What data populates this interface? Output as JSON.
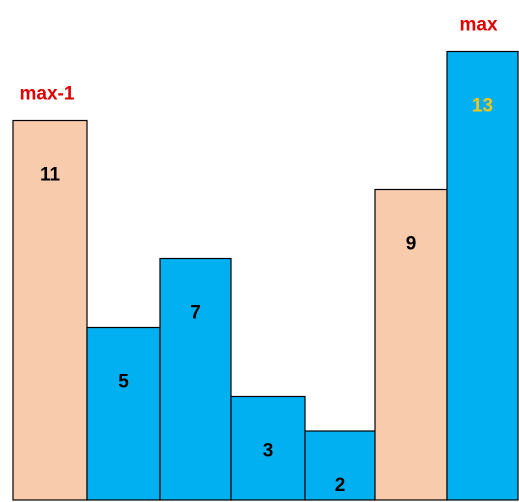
{
  "chart_data": {
    "type": "bar",
    "values": [
      11,
      5,
      7,
      3,
      2,
      9,
      13
    ],
    "bar_labels": [
      "11",
      "5",
      "7",
      "3",
      "2",
      "9",
      "13"
    ],
    "highlight": [
      "peach",
      "blue",
      "blue",
      "blue",
      "blue",
      "peach",
      "blue"
    ],
    "annotations": [
      {
        "text": "max-1",
        "bar_index": 0
      },
      {
        "text": "max",
        "bar_index": 6
      }
    ],
    "label_colors": {
      "default": "#000000",
      "max": "#F5C518"
    },
    "colors": {
      "blue": "#00B0F0",
      "peach": "#F8CBAD",
      "border": "#000000",
      "annotation": "#E00000"
    }
  }
}
